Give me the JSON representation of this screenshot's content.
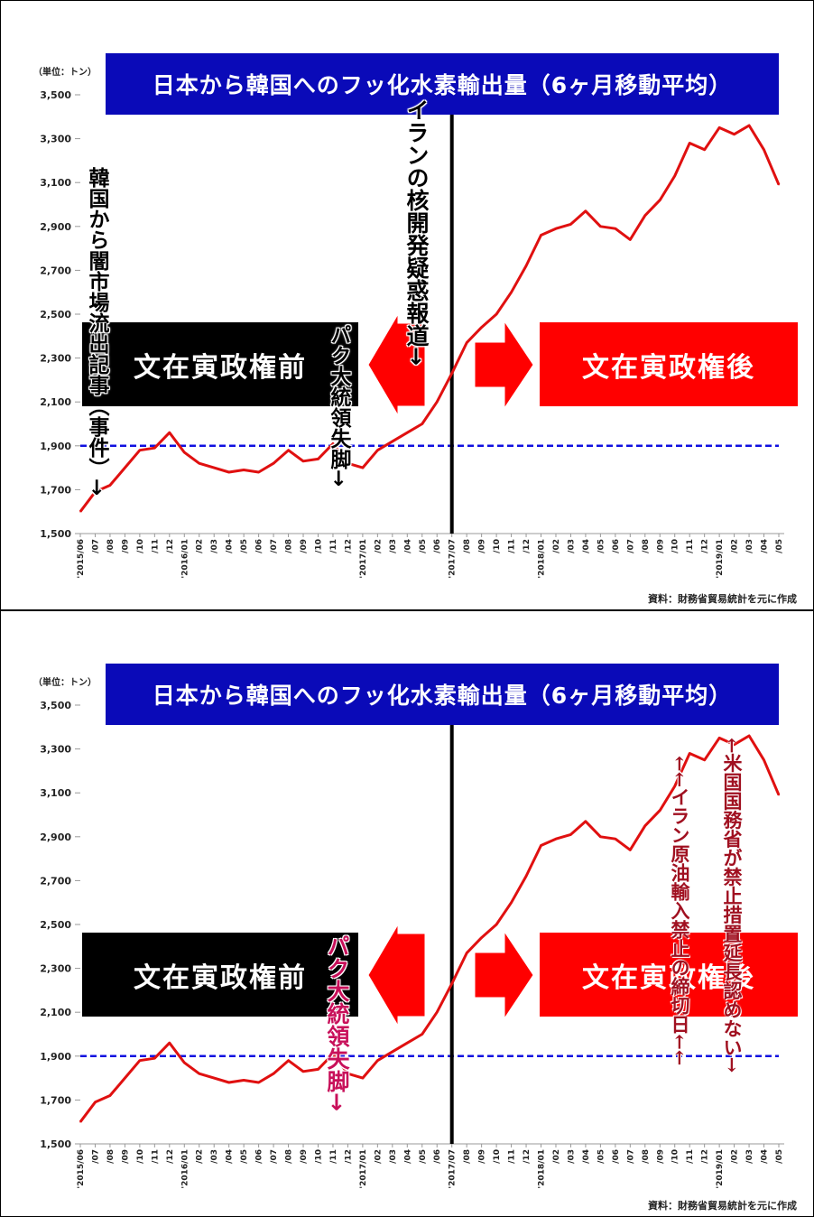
{
  "panels": [
    {
      "unit_label": "（単位：トン）",
      "title": "日本から韓国へのフッ化水素輸出量（6ヶ月移動平均）",
      "box_before": "文在寅政権前",
      "box_after": "文在寅政権後",
      "source": "資料：財務省貿易統計を元に作成",
      "notes": [
        {
          "id": "note-black-market",
          "text": "韓国から闇市場流出記事（事件）→",
          "style": "outlined"
        },
        {
          "id": "note-park-fall",
          "text": "パク大統領失脚→",
          "style": "outlined"
        },
        {
          "id": "note-iran-nuclear",
          "text": "イランの核開発疑惑報道→",
          "style": "outlined"
        }
      ]
    },
    {
      "unit_label": "（単位：トン）",
      "title": "日本から韓国へのフッ化水素輸出量（6ヶ月移動平均）",
      "box_before": "文在寅政権前",
      "box_after": "文在寅政権後",
      "source": "資料：財務省貿易統計を元に作成",
      "notes": [
        {
          "id": "note-park-fall",
          "text": "パク大統領失脚→",
          "style": "magenta"
        },
        {
          "id": "note-iran-oil-deadline",
          "text": "←←イラン原油輸入禁止の締切日←←",
          "style": "serif-red"
        },
        {
          "id": "note-us-state-dept",
          "text": "←米国国務省が禁止措置延長認めない→",
          "style": "serif-red"
        }
      ]
    }
  ],
  "chart_data": {
    "type": "line",
    "title": "日本から韓国へのフッ化水素輸出量（6ヶ月移動平均）",
    "ylabel": "（単位：トン）",
    "xlabel": "",
    "ylim": [
      1500,
      3500
    ],
    "yticks": [
      "1,500",
      "1,700",
      "1,900",
      "2,100",
      "2,300",
      "2,500",
      "2,700",
      "2,900",
      "3,100",
      "3,300",
      "3,500"
    ],
    "ytick_values": [
      1500,
      1700,
      1900,
      2100,
      2300,
      2500,
      2700,
      2900,
      3100,
      3300,
      3500
    ],
    "x": [
      "'2015/06",
      "/07",
      "/08",
      "/09",
      "/10",
      "/11",
      "/12",
      "'2016/01",
      "/02",
      "/03",
      "/04",
      "/05",
      "/06",
      "/07",
      "/08",
      "/09",
      "/10",
      "/11",
      "/12",
      "'2017/01",
      "/02",
      "/03",
      "/04",
      "/05",
      "/06",
      "'2017/07",
      "/08",
      "/09",
      "/10",
      "/11",
      "/12",
      "'2018/01",
      "/02",
      "/03",
      "/04",
      "/05",
      "/06",
      "/07",
      "/08",
      "/09",
      "/10",
      "/11",
      "/12",
      "'2019/01",
      "/02",
      "/03",
      "/04",
      "/05"
    ],
    "series": [
      {
        "values": [
          1600,
          1690,
          1720,
          1800,
          1880,
          1890,
          1960,
          1870,
          1820,
          1800,
          1780,
          1790,
          1780,
          1820,
          1880,
          1830,
          1840,
          1910,
          1820,
          1800,
          1880,
          1920,
          1960,
          2000,
          2100,
          2230,
          2370,
          2440,
          2500,
          2600,
          2720,
          2860,
          2890,
          2910,
          2970,
          2900,
          2890,
          2840,
          2950,
          3020,
          3130,
          3280,
          3250,
          3350,
          3320,
          3360,
          3250,
          3090
        ],
        "color": "#e01010"
      }
    ],
    "reference_line": {
      "value": 1900,
      "color": "#1010e0",
      "style": "dashed"
    },
    "event_line": {
      "x": "'2017/07",
      "color": "#000000"
    },
    "grid": false
  },
  "colors": {
    "title_bg": "#0a0ab8",
    "before_bg": "#000000",
    "after_bg": "#ff0000",
    "arrow": "#ff0000",
    "line": "#e01010",
    "ref_line": "#1010e0"
  }
}
